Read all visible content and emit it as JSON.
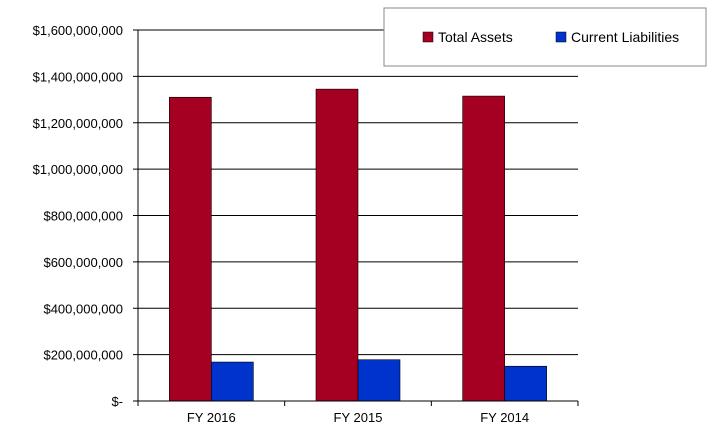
{
  "chart_data": {
    "type": "bar",
    "title": "",
    "xlabel": "",
    "ylabel": "",
    "categories": [
      "FY 2016",
      "FY 2015",
      "FY 2014"
    ],
    "ylim": [
      0,
      1600000000
    ],
    "yticks": [
      0,
      200000000,
      400000000,
      600000000,
      800000000,
      1000000000,
      1200000000,
      1400000000,
      1600000000
    ],
    "ytick_labels": [
      "$-",
      "$200,000,000",
      "$400,000,000",
      "$600,000,000",
      "$800,000,000",
      "$1,000,000,000",
      "$1,200,000,000",
      "$1,400,000,000",
      "$1,600,000,000"
    ],
    "grid": true,
    "legend_position": "top-right",
    "series": [
      {
        "name": "Total Assets",
        "color": "#A50021",
        "values": [
          1310000000,
          1345000000,
          1315000000
        ]
      },
      {
        "name": "Current Liabilities",
        "color": "#0033CC",
        "values": [
          168000000,
          178000000,
          150000000
        ]
      }
    ]
  }
}
